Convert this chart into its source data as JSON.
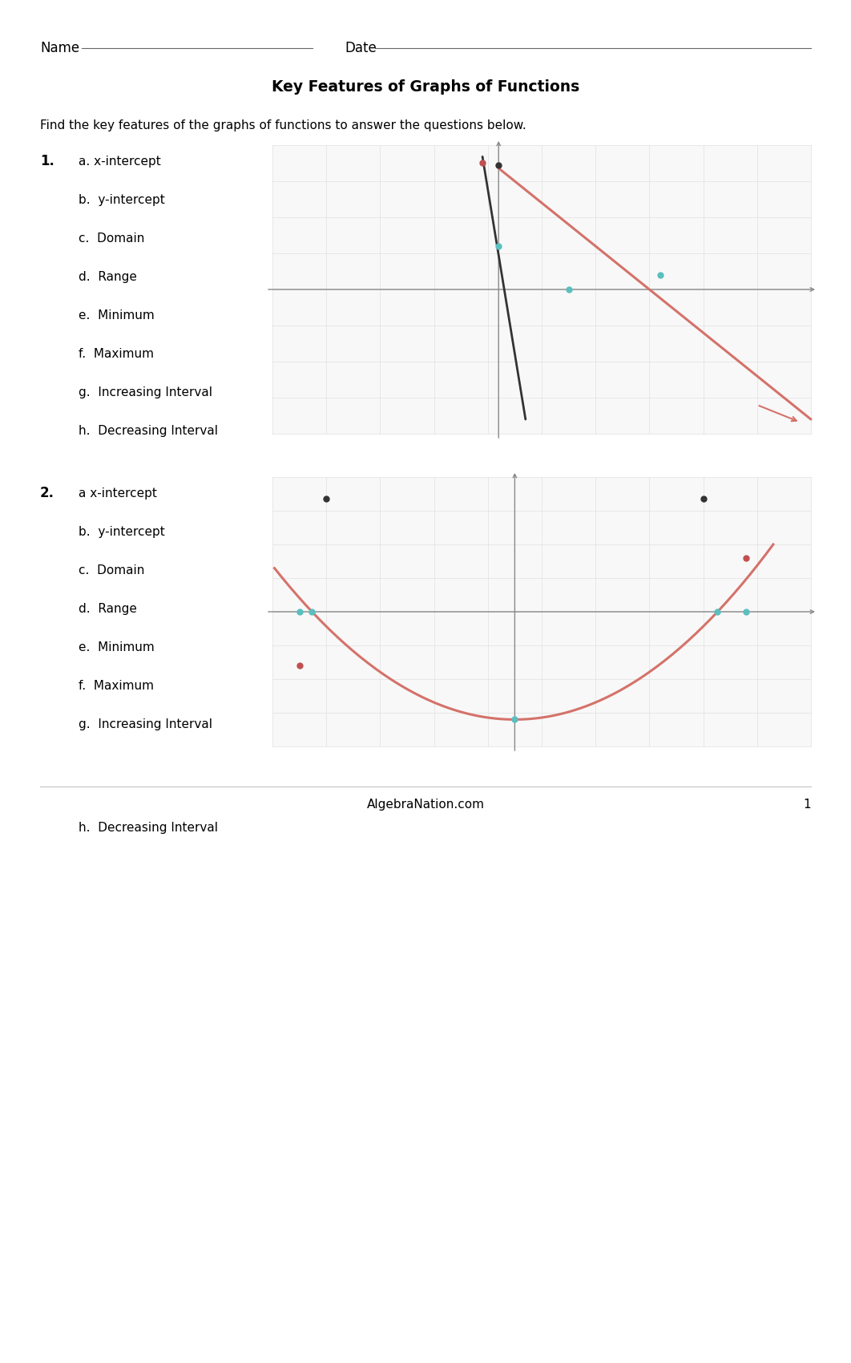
{
  "title": "Key Features of Graphs of Functions",
  "instruction": "Find the key features of the graphs of functions to answer the questions below.",
  "name_label": "Name",
  "date_label": "Date",
  "footer_text": "AlgebraNation.com",
  "footer_page": "1",
  "q1_number": "1.",
  "q1_items": [
    "a. x-intercept",
    "b.  y-intercept",
    "c.  Domain",
    "d.  Range",
    "e.  Minimum",
    "f.  Maximum",
    "g.  Increasing Interval",
    "h.  Decreasing Interval"
  ],
  "q2_number": "2.",
  "q2_items": [
    "a x-intercept",
    "b.  y-intercept",
    "c.  Domain",
    "d.  Range",
    "e.  Minimum",
    "f.  Maximum",
    "g.  Increasing Interval",
    "h.  Decreasing Interval"
  ],
  "bg_color": "#ffffff",
  "text_color": "#000000",
  "grid_color": "#e0e0e0",
  "axis_color": "#888888",
  "graph_line1_color": "#d4726a",
  "graph_line2_color": "#d4726a",
  "graph_dark_color": "#333333",
  "dot_cyan": "#5bbfbf",
  "dot_red": "#c05050"
}
